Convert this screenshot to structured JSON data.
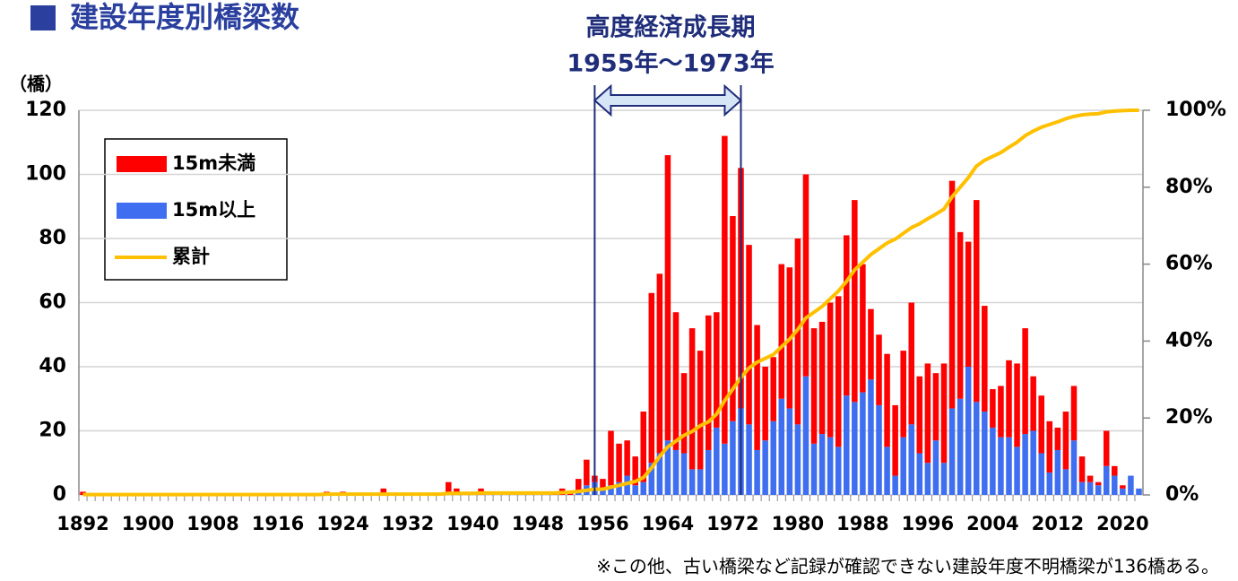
{
  "chart_data": {
    "type": "bar",
    "title": "建設年度別橋梁数",
    "y_label": "（橋）",
    "annotation": [
      "高度経済成長期",
      "1955年～1973年"
    ],
    "period": {
      "start": "1955",
      "end": "1973"
    },
    "footnote": "※この他、古い橋梁など記録が確認できない建設年度不明橋梁が136橋ある。",
    "stacked": true,
    "grid": true,
    "legend": "upper left",
    "categories": [
      "1892",
      null,
      null,
      null,
      null,
      null,
      null,
      null,
      "1900",
      null,
      null,
      null,
      null,
      null,
      null,
      null,
      "1908",
      null,
      null,
      null,
      null,
      null,
      null,
      null,
      "1916",
      null,
      null,
      null,
      null,
      null,
      null,
      null,
      "1924",
      null,
      null,
      null,
      null,
      null,
      null,
      null,
      "1932",
      null,
      null,
      null,
      null,
      null,
      null,
      null,
      "1940",
      null,
      null,
      null,
      null,
      null,
      null,
      null,
      "1948",
      null,
      null,
      null,
      null,
      null,
      null,
      null,
      "1956",
      null,
      null,
      null,
      null,
      null,
      null,
      null,
      "1964",
      null,
      null,
      null,
      null,
      null,
      null,
      null,
      "1972",
      null,
      null,
      null,
      null,
      null,
      null,
      null,
      "1980",
      null,
      null,
      null,
      null,
      null,
      null,
      null,
      "1988",
      null,
      null,
      null,
      null,
      null,
      null,
      null,
      "1996",
      null,
      null,
      null,
      null,
      null,
      null,
      null,
      "2004",
      null,
      null,
      null,
      null,
      null,
      null,
      null,
      "2012",
      null,
      null,
      null,
      null,
      null,
      null,
      null,
      "2020",
      null,
      null
    ],
    "series": [
      {
        "name": "15m以上",
        "color": "#3f6ff0",
        "values": [
          0,
          0,
          0,
          0,
          0,
          0,
          0,
          0,
          0,
          0,
          0,
          0,
          0,
          0,
          0,
          0,
          0,
          0,
          0,
          0,
          0,
          0,
          0,
          0,
          0,
          0,
          0,
          0,
          0,
          0,
          0,
          0,
          0,
          0,
          0,
          0,
          0,
          0,
          0,
          0,
          0,
          0,
          0,
          0,
          0,
          0,
          0,
          0,
          0,
          0,
          0,
          0,
          0,
          0,
          0,
          0,
          0,
          0,
          0,
          0,
          0,
          1,
          3,
          4,
          2,
          3,
          4,
          6,
          3,
          4,
          10,
          13,
          17,
          14,
          13,
          8,
          8,
          14,
          21,
          16,
          23,
          27,
          22,
          14,
          17,
          23,
          30,
          27,
          22,
          37,
          16,
          19,
          18,
          15,
          31,
          29,
          32,
          36,
          28,
          15,
          6,
          18,
          22,
          13,
          10,
          17,
          10,
          27,
          30,
          40,
          29,
          26,
          21,
          18,
          18,
          15,
          19,
          20,
          13,
          7,
          14,
          8,
          17,
          4,
          4,
          3,
          9,
          6,
          2,
          6,
          2
        ]
      },
      {
        "name": "15m未満",
        "color": "#ff0000",
        "values": [
          1,
          0,
          0,
          0,
          0,
          0,
          0,
          0,
          0,
          0,
          0,
          0,
          0,
          0,
          0,
          0,
          0,
          0,
          0,
          0,
          0,
          0,
          0,
          0,
          0,
          0,
          0,
          0,
          0,
          0,
          1,
          0,
          1,
          0,
          0,
          0,
          0,
          2,
          0,
          0,
          0,
          0,
          0,
          0,
          0,
          4,
          2,
          0,
          0,
          2,
          0,
          0,
          0,
          0,
          0,
          0,
          0,
          0,
          1,
          2,
          1,
          4,
          8,
          2,
          3,
          17,
          12,
          11,
          9,
          22,
          53,
          56,
          89,
          43,
          25,
          44,
          37,
          42,
          36,
          96,
          64,
          75,
          56,
          39,
          23,
          20,
          42,
          44,
          58,
          63,
          36,
          35,
          42,
          47,
          50,
          63,
          40,
          22,
          22,
          29,
          22,
          27,
          38,
          24,
          31,
          21,
          31,
          71,
          52,
          39,
          63,
          33,
          12,
          16,
          24,
          26,
          33,
          17,
          18,
          16,
          7,
          18,
          17,
          8,
          2,
          1,
          11,
          3,
          1,
          0,
          0
        ]
      },
      {
        "name": "累計",
        "color": "#ffc000",
        "axis": "y2",
        "kind": "line",
        "values": [
          0.1,
          0.1,
          0.1,
          0.1,
          0.1,
          0.1,
          0.1,
          0.1,
          0.1,
          0.1,
          0.1,
          0.1,
          0.1,
          0.1,
          0.1,
          0.1,
          0.1,
          0.1,
          0.1,
          0.1,
          0.1,
          0.1,
          0.1,
          0.1,
          0.1,
          0.1,
          0.1,
          0.1,
          0.1,
          0.1,
          0.2,
          0.2,
          0.2,
          0.2,
          0.2,
          0.2,
          0.2,
          0.2,
          0.2,
          0.2,
          0.2,
          0.2,
          0.2,
          0.2,
          0.2,
          0.4,
          0.4,
          0.4,
          0.4,
          0.5,
          0.5,
          0.5,
          0.5,
          0.5,
          0.5,
          0.5,
          0.5,
          0.5,
          0.5,
          0.6,
          0.7,
          0.9,
          1.2,
          1.5,
          1.5,
          2,
          2.5,
          3,
          3.5,
          4.5,
          7,
          10,
          12.5,
          14,
          15.5,
          16.5,
          18,
          19,
          21,
          24.5,
          27.5,
          30.5,
          33,
          34.5,
          35.5,
          36.5,
          38.5,
          40.5,
          43,
          46,
          47.5,
          49,
          51,
          53,
          55.5,
          58.5,
          60.5,
          62.5,
          64,
          65.5,
          66.5,
          68,
          69.5,
          70.5,
          71.8,
          73,
          74.3,
          77.5,
          80,
          82.5,
          85.5,
          87,
          88,
          89,
          90.4,
          91.7,
          93.4,
          94.6,
          95.6,
          96.3,
          97,
          97.8,
          98.4,
          98.8,
          99,
          99.1,
          99.6,
          99.8,
          99.9,
          100,
          100
        ]
      }
    ],
    "ylim": [
      0,
      120
    ],
    "yticks": [
      0,
      20,
      40,
      60,
      80,
      100,
      120
    ],
    "y2lim": [
      0,
      100
    ],
    "y2ticks": [
      {
        "value": 0,
        "label": "0%"
      },
      {
        "value": 20,
        "label": "20%"
      },
      {
        "value": 40,
        "label": "40%"
      },
      {
        "value": 60,
        "label": "60%"
      },
      {
        "value": 80,
        "label": "80%"
      },
      {
        "value": 100,
        "label": "100%"
      }
    ]
  }
}
